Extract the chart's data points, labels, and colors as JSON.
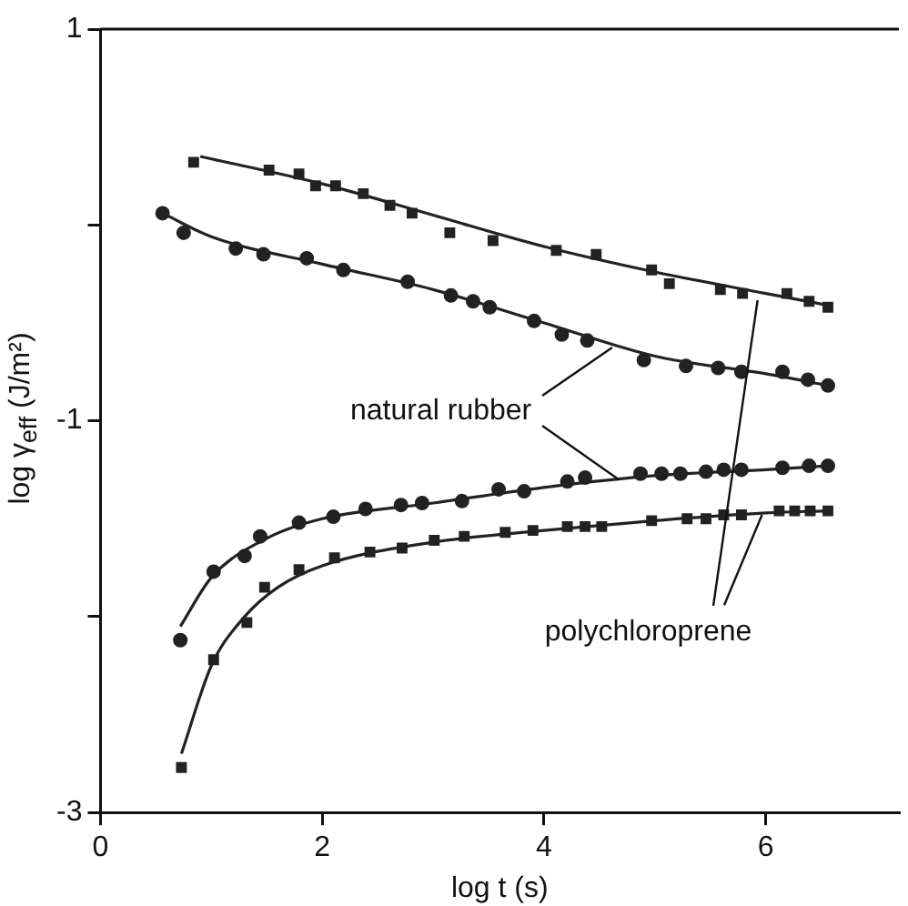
{
  "chart_data": {
    "type": "scatter",
    "xlabel": "log t (s)",
    "ylabel": "log γ$_{eff}$ (J/m²)",
    "xlim": [
      0,
      7.2
    ],
    "xticks": [
      0,
      2,
      4,
      6
    ],
    "ylim": [
      -3,
      1
    ],
    "yticks": [
      1,
      {
        "value": 0,
        "label": null
      },
      -1,
      {
        "value": -2,
        "label": null
      },
      -3
    ],
    "grid": false,
    "legend": false,
    "annotations": [
      {
        "text": "natural rubber",
        "x": 4.62,
        "y": -0.63
      },
      {
        "text": "polychloroprene",
        "x": 5.93,
        "y": -0.38
      }
    ],
    "series": [
      {
        "marker": "square",
        "color": "#222222",
        "x": [
          0.84,
          1.52,
          1.79,
          1.94,
          2.12,
          2.37,
          2.61,
          2.81,
          3.15,
          3.54,
          4.11,
          4.47,
          4.97,
          5.13,
          5.59,
          5.79,
          6.19,
          6.39,
          6.56
        ],
        "values": [
          0.32,
          0.28,
          0.26,
          0.2,
          0.2,
          0.16,
          0.1,
          0.06,
          -0.04,
          -0.08,
          -0.13,
          -0.15,
          -0.23,
          -0.3,
          -0.33,
          -0.35,
          -0.35,
          -0.39,
          -0.42
        ]
      },
      {
        "type": "line",
        "marker": "none",
        "color": "#222222",
        "x": [
          0.9,
          2,
          3,
          4,
          5,
          6,
          6.56
        ],
        "values": [
          0.35,
          0.21,
          0.05,
          -0.11,
          -0.24,
          -0.35,
          -0.41
        ]
      },
      {
        "marker": "circle",
        "color": "#222222",
        "x": [
          0.56,
          0.75,
          1.22,
          1.47,
          1.86,
          2.19,
          2.77,
          3.16,
          3.36,
          3.51,
          3.91,
          4.16,
          4.39,
          4.9,
          5.28,
          5.57,
          5.78,
          6.15,
          6.38,
          6.56
        ],
        "values": [
          0.06,
          -0.04,
          -0.12,
          -0.15,
          -0.17,
          -0.23,
          -0.29,
          -0.36,
          -0.39,
          -0.42,
          -0.49,
          -0.56,
          -0.59,
          -0.69,
          -0.72,
          -0.73,
          -0.75,
          -0.75,
          -0.79,
          -0.82
        ]
      },
      {
        "type": "line",
        "marker": "none",
        "color": "#222222",
        "x": [
          0.56,
          1,
          2,
          3,
          4,
          5,
          6,
          6.56
        ],
        "values": [
          0.06,
          -0.06,
          -0.2,
          -0.33,
          -0.5,
          -0.67,
          -0.76,
          -0.82
        ]
      },
      {
        "marker": "circle",
        "color": "#222222",
        "x": [
          0.72,
          1.02,
          1.3,
          1.44,
          1.79,
          2.1,
          2.39,
          2.71,
          2.9,
          3.26,
          3.59,
          3.82,
          4.21,
          4.37,
          4.87,
          5.06,
          5.23,
          5.46,
          5.62,
          5.78,
          6.15,
          6.39,
          6.56
        ],
        "values": [
          -2.12,
          -1.77,
          -1.69,
          -1.59,
          -1.52,
          -1.49,
          -1.45,
          -1.43,
          -1.42,
          -1.41,
          -1.35,
          -1.36,
          -1.31,
          -1.29,
          -1.27,
          -1.27,
          -1.27,
          -1.26,
          -1.25,
          -1.25,
          -1.24,
          -1.23,
          -1.23
        ]
      },
      {
        "type": "line",
        "marker": "none",
        "color": "#222222",
        "x": [
          0.72,
          1,
          1.5,
          2,
          3,
          4,
          5,
          6,
          6.56
        ],
        "values": [
          -2.05,
          -1.8,
          -1.6,
          -1.5,
          -1.42,
          -1.34,
          -1.28,
          -1.25,
          -1.23
        ]
      },
      {
        "marker": "square",
        "color": "#222222",
        "x": [
          0.73,
          1.02,
          1.32,
          1.48,
          1.79,
          2.11,
          2.43,
          2.72,
          3.01,
          3.28,
          3.65,
          3.9,
          4.21,
          4.37,
          4.52,
          4.97,
          5.29,
          5.46,
          5.62,
          5.78,
          6.12,
          6.26,
          6.4,
          6.56
        ],
        "values": [
          -2.77,
          -2.22,
          -2.03,
          -1.85,
          -1.76,
          -1.7,
          -1.67,
          -1.65,
          -1.61,
          -1.59,
          -1.57,
          -1.56,
          -1.54,
          -1.54,
          -1.54,
          -1.51,
          -1.5,
          -1.5,
          -1.48,
          -1.48,
          -1.46,
          -1.46,
          -1.46,
          -1.46
        ]
      },
      {
        "type": "line",
        "marker": "none",
        "color": "#222222",
        "x": [
          0.73,
          1,
          1.3,
          1.6,
          2,
          3,
          4,
          5,
          6,
          6.56
        ],
        "values": [
          -2.7,
          -2.25,
          -2.0,
          -1.85,
          -1.74,
          -1.62,
          -1.56,
          -1.51,
          -1.47,
          -1.46
        ]
      }
    ]
  }
}
